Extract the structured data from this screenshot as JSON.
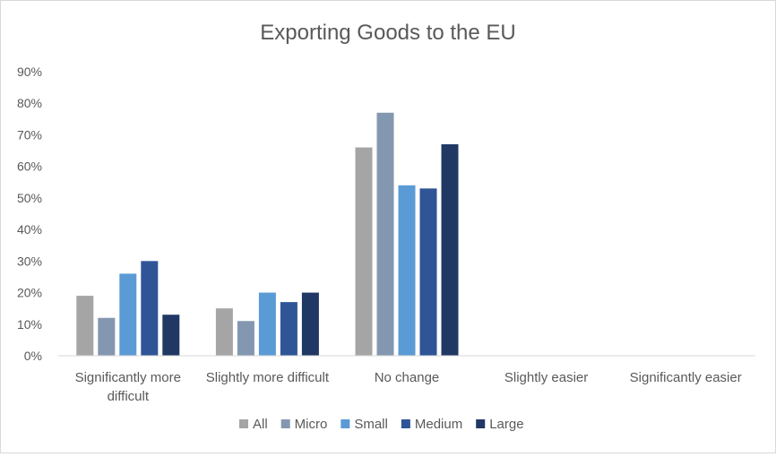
{
  "chart_data": {
    "type": "bar",
    "title": "Exporting Goods to the EU",
    "xlabel": "",
    "ylabel": "",
    "ylim": [
      0,
      90
    ],
    "yticks": [
      "0%",
      "10%",
      "20%",
      "30%",
      "40%",
      "50%",
      "60%",
      "70%",
      "80%",
      "90%"
    ],
    "categories": [
      [
        "Significantly more",
        "difficult"
      ],
      [
        "Slightly more difficult"
      ],
      [
        "No change"
      ],
      [
        "Slightly easier"
      ],
      [
        "Significantly easier"
      ]
    ],
    "series": [
      {
        "name": "All",
        "color": "#a5a5a5",
        "values": [
          19,
          15,
          66,
          0,
          0
        ]
      },
      {
        "name": "Micro",
        "color": "#8497b0",
        "values": [
          12,
          11,
          77,
          0,
          0
        ]
      },
      {
        "name": "Small",
        "color": "#5b9bd5",
        "values": [
          26,
          20,
          54,
          0,
          0
        ]
      },
      {
        "name": "Medium",
        "color": "#2f5597",
        "values": [
          30,
          17,
          53,
          0,
          0
        ]
      },
      {
        "name": "Large",
        "color": "#203864",
        "values": [
          13,
          20,
          67,
          0,
          0
        ]
      }
    ],
    "grid": false,
    "legend_position": "bottom"
  }
}
